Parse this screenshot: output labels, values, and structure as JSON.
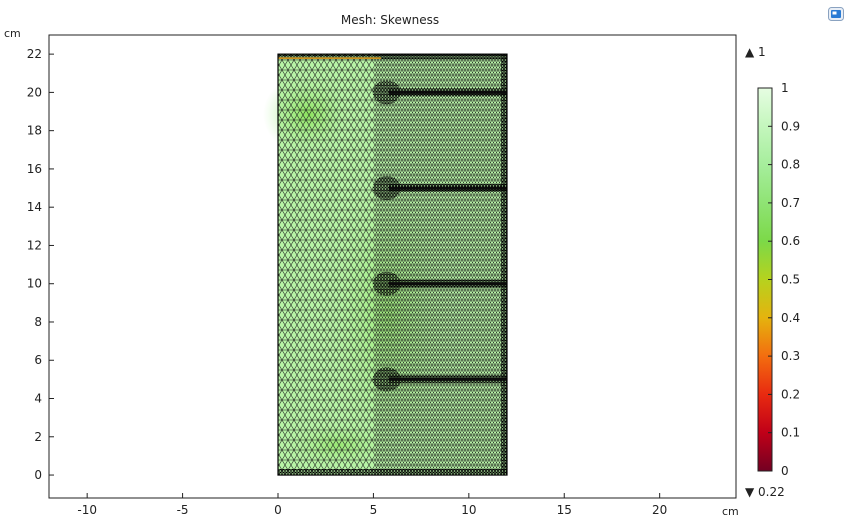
{
  "plot": {
    "title": "Mesh: Skewness",
    "unit_x": "cm",
    "unit_y": "cm"
  },
  "axes": {
    "x_ticks": [
      "-10",
      "-5",
      "0",
      "5",
      "10",
      "15",
      "20"
    ],
    "x_tick_values": [
      -10,
      -5,
      0,
      5,
      10,
      15,
      20
    ],
    "y_ticks": [
      "0",
      "2",
      "4",
      "6",
      "8",
      "10",
      "12",
      "14",
      "16",
      "18",
      "20",
      "22"
    ],
    "y_tick_values": [
      0,
      2,
      4,
      6,
      8,
      10,
      12,
      14,
      16,
      18,
      20,
      22
    ],
    "x_range": [
      -12,
      24
    ],
    "y_range": [
      -1.2,
      23
    ]
  },
  "geometry": {
    "domain_x": [
      0,
      12
    ],
    "domain_y": [
      0,
      22
    ],
    "fins_y": [
      5,
      10,
      15,
      20
    ],
    "fins_x": [
      5.8,
      12
    ]
  },
  "colorbar": {
    "ticks": [
      "1",
      "0.9",
      "0.8",
      "0.7",
      "0.6",
      "0.5",
      "0.4",
      "0.3",
      "0.2",
      "0.1",
      "0"
    ],
    "tick_values": [
      1,
      0.9,
      0.8,
      0.7,
      0.6,
      0.5,
      0.4,
      0.3,
      0.2,
      0.1,
      0
    ],
    "max_label": "▲ 1",
    "min_label": "▼ 0.22"
  },
  "colors": {
    "mesh_fill": "#b7f3a6",
    "mesh_line": "#1a1a1a",
    "accent": "#2a7bd4"
  },
  "icons": {
    "view": "camera-view-icon"
  }
}
